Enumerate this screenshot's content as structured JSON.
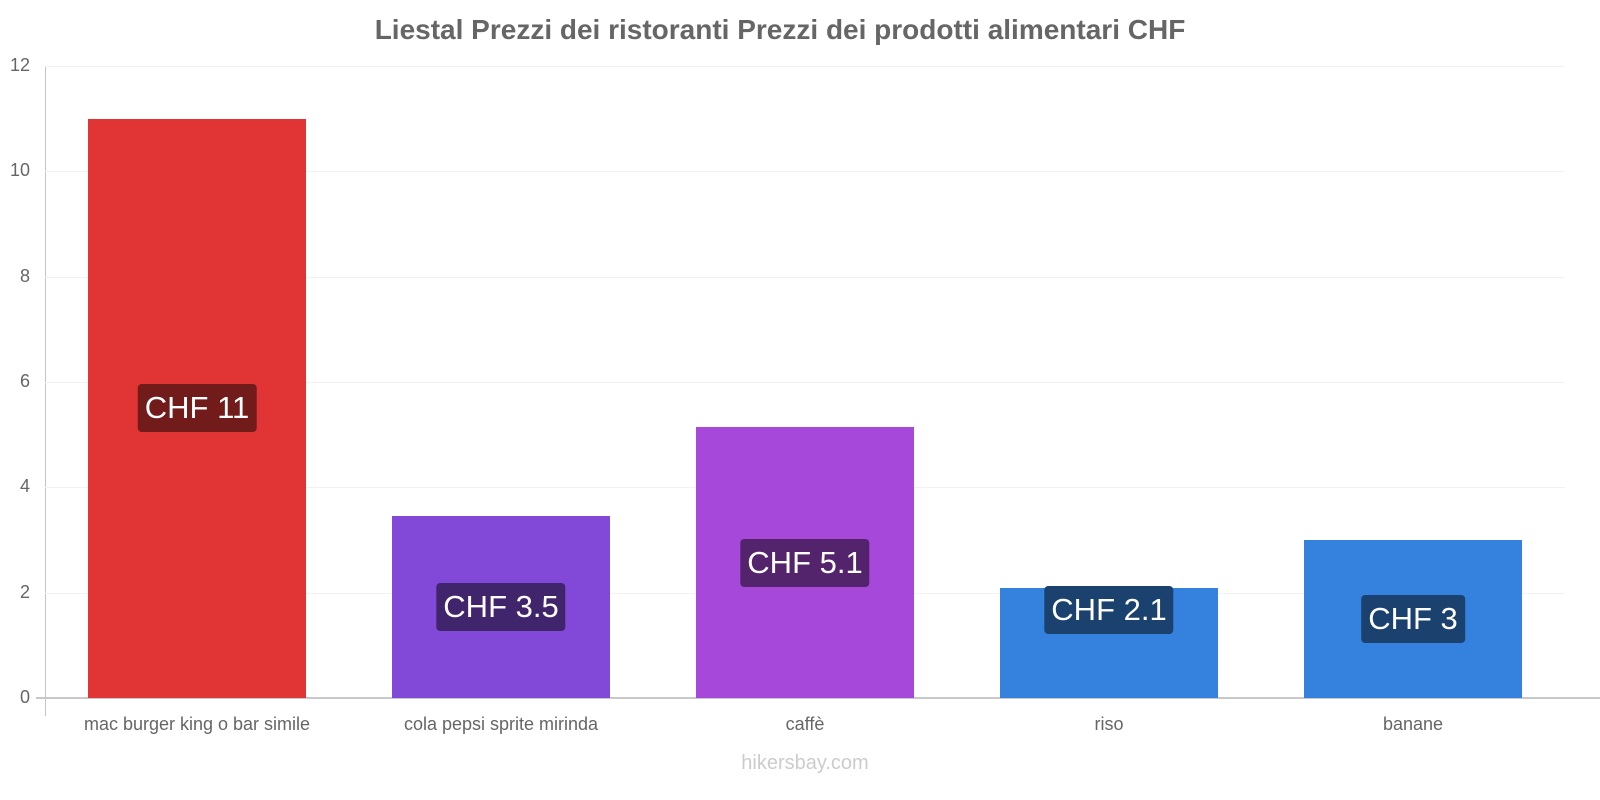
{
  "title": "Liestal Prezzi dei ristoranti Prezzi dei prodotti alimentari CHF",
  "y_ticks": [
    "0",
    "2",
    "4",
    "6",
    "8",
    "10",
    "12"
  ],
  "bars": [
    {
      "category": "mac burger king o bar simile",
      "value": 11,
      "label": "CHF 11",
      "color": "#e13535",
      "label_bg": "#711b1b"
    },
    {
      "category": "cola pepsi sprite mirinda",
      "value": 3.45,
      "label": "CHF 3.5",
      "color": "#8249d9",
      "label_bg": "#41256c"
    },
    {
      "category": "caffè",
      "value": 5.14,
      "label": "CHF 5.1",
      "color": "#a648d9",
      "label_bg": "#53246c"
    },
    {
      "category": "riso",
      "value": 2.08,
      "label": "CHF 2.1",
      "color": "#3582de",
      "label_bg": "#1b416f"
    },
    {
      "category": "banane",
      "value": 3.0,
      "label": "CHF 3",
      "color": "#3582de",
      "label_bg": "#1b416f"
    }
  ],
  "footer": "hikersbay.com",
  "chart_data": {
    "type": "bar",
    "title": "Liestal Prezzi dei ristoranti Prezzi dei prodotti alimentari CHF",
    "categories": [
      "mac burger king o bar simile",
      "cola pepsi sprite mirinda",
      "caffè",
      "riso",
      "banane"
    ],
    "values": [
      11,
      3.45,
      5.14,
      2.08,
      3.0
    ],
    "data_labels": [
      "CHF 11",
      "CHF 3.5",
      "CHF 5.1",
      "CHF 2.1",
      "CHF 3"
    ],
    "xlabel": "",
    "ylabel": "",
    "ylim": [
      0,
      12
    ],
    "yticks": [
      0,
      2,
      4,
      6,
      8,
      10,
      12
    ],
    "grid": true,
    "legend": null,
    "colors": [
      "#e13535",
      "#8249d9",
      "#a648d9",
      "#3582de",
      "#3582de"
    ],
    "source": "hikersbay.com"
  }
}
